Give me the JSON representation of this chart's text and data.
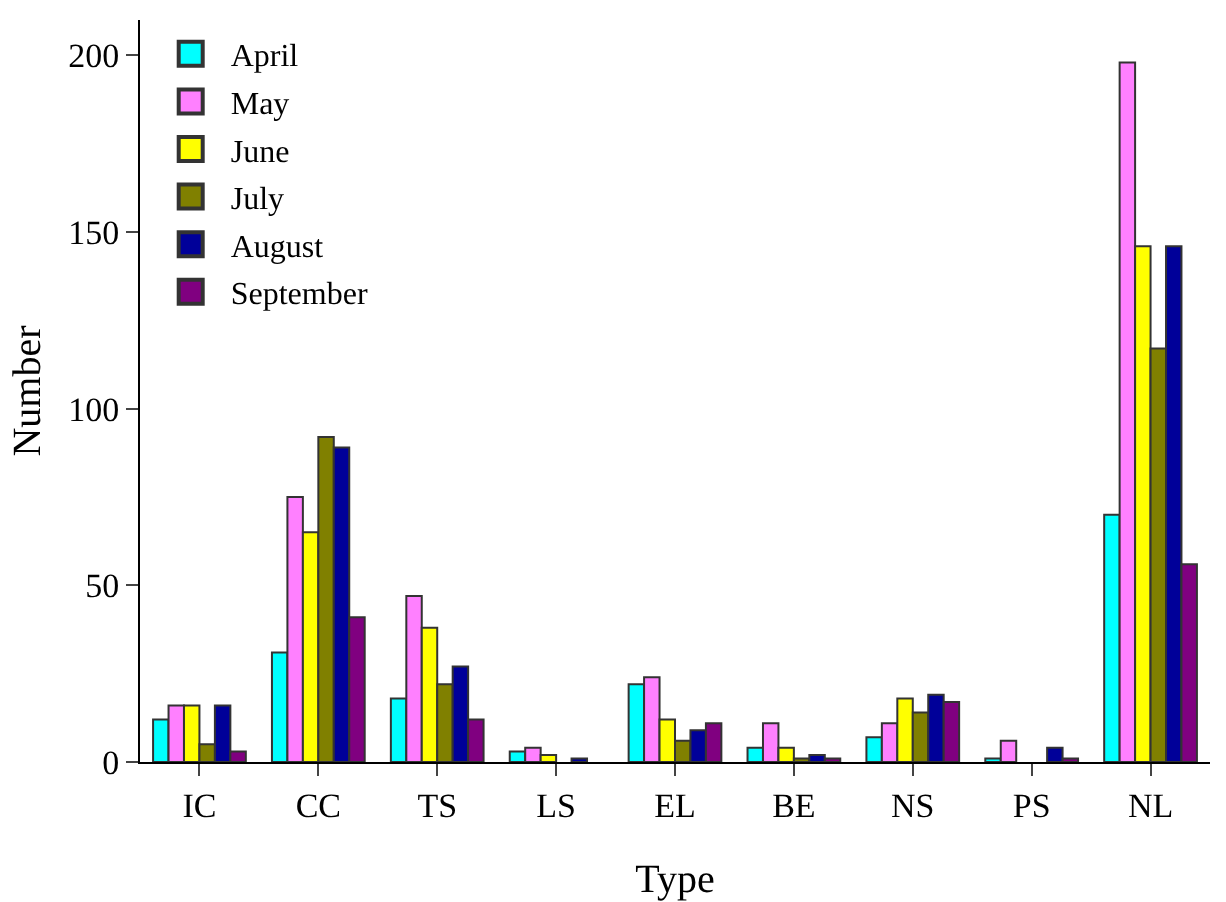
{
  "chart_data": {
    "type": "bar",
    "xlabel": "Type",
    "ylabel": "Number",
    "categories": [
      "IC",
      "CC",
      "TS",
      "LS",
      "EL",
      "BE",
      "NS",
      "PS",
      "NL"
    ],
    "series": [
      {
        "name": "April",
        "color": "#00ffff",
        "values": [
          12,
          31,
          18,
          3,
          22,
          4,
          7,
          1,
          70
        ]
      },
      {
        "name": "May",
        "color": "#ff80ff",
        "values": [
          16,
          75,
          47,
          4,
          24,
          11,
          11,
          6,
          198
        ]
      },
      {
        "name": "June",
        "color": "#ffff00",
        "values": [
          16,
          65,
          38,
          2,
          12,
          4,
          18,
          0,
          146
        ]
      },
      {
        "name": "July",
        "color": "#808000",
        "values": [
          5,
          92,
          22,
          0,
          6,
          1,
          14,
          0,
          117
        ]
      },
      {
        "name": "August",
        "color": "#000099",
        "values": [
          16,
          89,
          27,
          1,
          9,
          2,
          19,
          4,
          146
        ]
      },
      {
        "name": "September",
        "color": "#800080",
        "values": [
          3,
          41,
          12,
          0,
          11,
          1,
          17,
          1,
          56
        ]
      }
    ],
    "ylim": [
      0,
      210
    ],
    "yticks": [
      0,
      50,
      100,
      150,
      200
    ],
    "grid": false,
    "legend": "top left"
  }
}
